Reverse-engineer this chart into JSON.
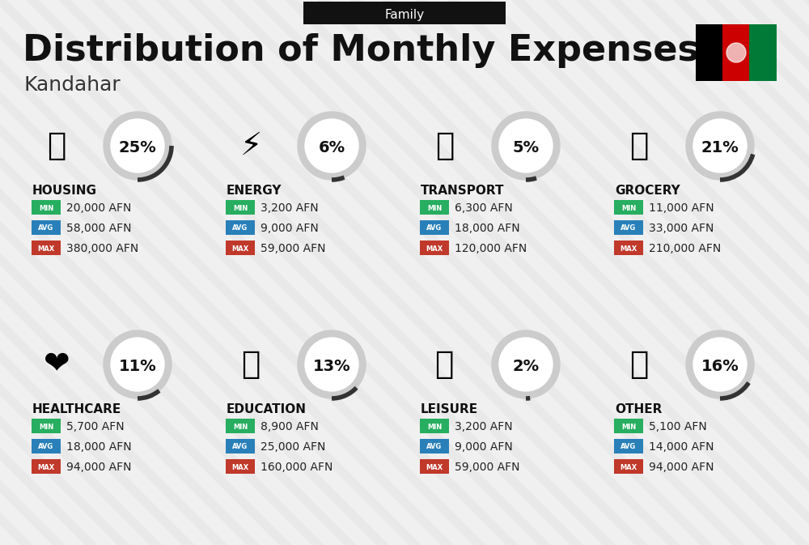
{
  "title": "Distribution of Monthly Expenses",
  "subtitle": "Kandahar",
  "family_label": "Family",
  "bg_color": "#f0f0f0",
  "header_bg": "#111111",
  "header_text_color": "#ffffff",
  "title_color": "#111111",
  "subtitle_color": "#333333",
  "categories": [
    {
      "name": "HOUSING",
      "pct": "25%",
      "min": "20,000 AFN",
      "avg": "58,000 AFN",
      "max": "380,000 AFN",
      "col": 0,
      "row": 0
    },
    {
      "name": "ENERGY",
      "pct": "6%",
      "min": "3,200 AFN",
      "avg": "9,000 AFN",
      "max": "59,000 AFN",
      "col": 1,
      "row": 0
    },
    {
      "name": "TRANSPORT",
      "pct": "5%",
      "min": "6,300 AFN",
      "avg": "18,000 AFN",
      "max": "120,000 AFN",
      "col": 2,
      "row": 0
    },
    {
      "name": "GROCERY",
      "pct": "21%",
      "min": "11,000 AFN",
      "avg": "33,000 AFN",
      "max": "210,000 AFN",
      "col": 3,
      "row": 0
    },
    {
      "name": "HEALTHCARE",
      "pct": "11%",
      "min": "5,700 AFN",
      "avg": "18,000 AFN",
      "max": "94,000 AFN",
      "col": 0,
      "row": 1
    },
    {
      "name": "EDUCATION",
      "pct": "13%",
      "min": "8,900 AFN",
      "avg": "25,000 AFN",
      "max": "160,000 AFN",
      "col": 1,
      "row": 1
    },
    {
      "name": "LEISURE",
      "pct": "2%",
      "min": "3,200 AFN",
      "avg": "9,000 AFN",
      "max": "59,000 AFN",
      "col": 2,
      "row": 1
    },
    {
      "name": "OTHER",
      "pct": "16%",
      "min": "5,100 AFN",
      "avg": "14,000 AFN",
      "max": "94,000 AFN",
      "col": 3,
      "row": 1
    }
  ],
  "min_color": "#27ae60",
  "avg_color": "#2980b9",
  "max_color": "#c0392b",
  "label_color": "#ffffff",
  "value_color": "#222222",
  "circle_color": "#cccccc",
  "circle_fill": "#ffffff",
  "pct_color": "#111111",
  "cat_color": "#111111",
  "stripe_color": "#d8d8d8",
  "flag_colors": [
    "#000000",
    "#cc0001",
    "#007a36"
  ]
}
